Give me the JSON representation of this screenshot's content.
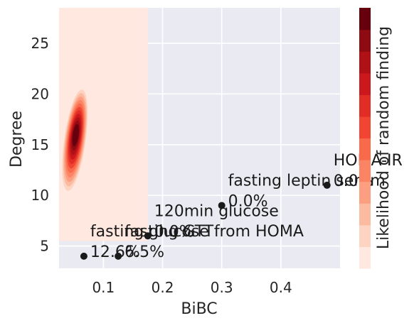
{
  "chart_data": {
    "type": "scatter",
    "xlabel": "BiBC",
    "ylabel": "Degree",
    "xlim": [
      0.025,
      0.5
    ],
    "ylim": [
      2.8,
      28.5
    ],
    "x_ticks": [
      "0.1",
      "0.2",
      "0.3",
      "0.4"
    ],
    "x_tick_values": [
      0.1,
      0.2,
      0.3,
      0.4
    ],
    "y_ticks": [
      "5",
      "10",
      "15",
      "20",
      "25"
    ],
    "y_tick_values": [
      5,
      10,
      15,
      20,
      25
    ],
    "grid": true,
    "background": "#eaeaf2",
    "points": [
      {
        "x": 0.067,
        "y": 4,
        "label": "fasting glucose from HOMA",
        "pct": "12.6%"
      },
      {
        "x": 0.125,
        "y": 4,
        "label": "fasting GTT",
        "pct": "6.5%"
      },
      {
        "x": 0.175,
        "y": 6,
        "label": "120min glucose",
        "pct": "0.0%"
      },
      {
        "x": 0.3,
        "y": 9,
        "label": "fasting leptin serum",
        "pct": "0.0%"
      },
      {
        "x": 0.478,
        "y": 11,
        "label": "HOMA-IR",
        "pct": "0.0%"
      }
    ],
    "shaded_region": {
      "x_range": [
        0.025,
        0.175
      ],
      "y_range": [
        5.5,
        28.5
      ],
      "color": "#fee8e0"
    },
    "kde": {
      "center_x": 0.052,
      "center_y": 16,
      "colormap": "Reds"
    },
    "colorbar": {
      "label": "Likelihood of random finding",
      "colors": [
        "#fee8e0",
        "#fdd4c2",
        "#fcbba1",
        "#fc9f81",
        "#fb8464",
        "#f86a4a",
        "#f14432",
        "#e12d26",
        "#cb181d",
        "#af1117",
        "#8f0b13",
        "#67000d"
      ]
    }
  }
}
